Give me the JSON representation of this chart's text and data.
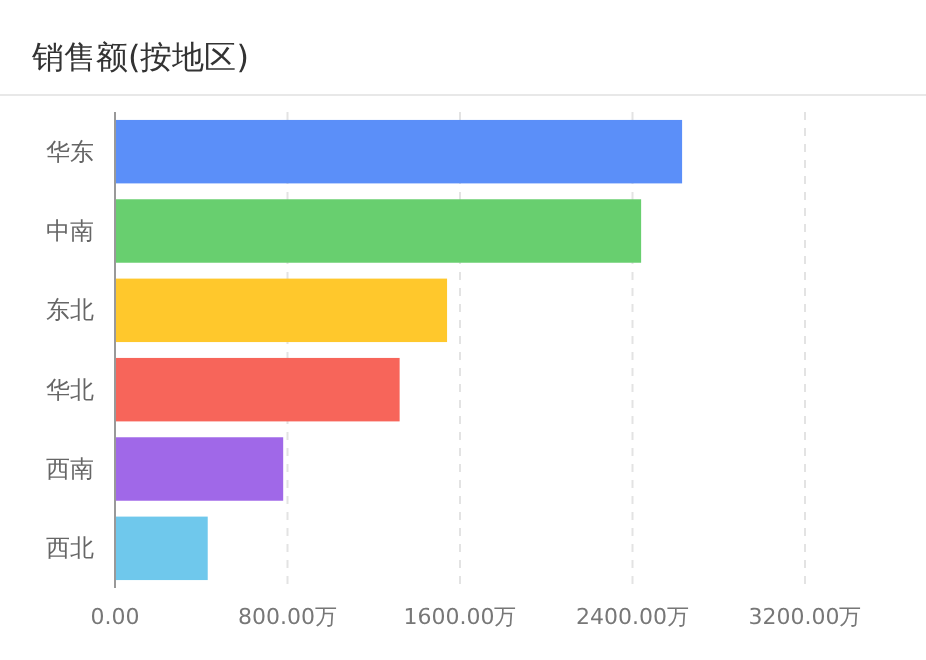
{
  "chart_data": {
    "type": "bar",
    "title": "销售额(按地区)",
    "orientation": "horizontal",
    "categories": [
      "华东",
      "中南",
      "东北",
      "华北",
      "西南",
      "西北"
    ],
    "values": [
      2630,
      2440,
      1540,
      1320,
      780,
      430
    ],
    "colors": [
      "#5b8ff9",
      "#68cf6f",
      "#ffc82c",
      "#f7655a",
      "#a068e8",
      "#6fc8ec"
    ],
    "xlim": [
      0,
      3200
    ],
    "xticks": [
      {
        "value": 0,
        "label": "0.00"
      },
      {
        "value": 800,
        "label": "800.00万"
      },
      {
        "value": 1600,
        "label": "1600.00万"
      },
      {
        "value": 2400,
        "label": "2400.00万"
      },
      {
        "value": 3200,
        "label": "3200.00万"
      }
    ],
    "grid": "x"
  }
}
